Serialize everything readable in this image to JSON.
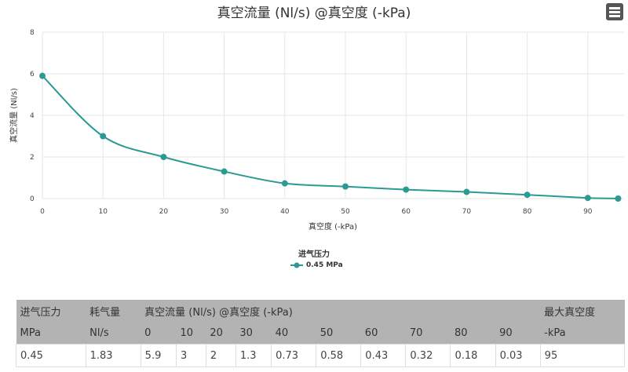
{
  "chart_data": {
    "type": "line",
    "title": "真空流量 (Nl/s) @真空度 (-kPa)",
    "xlabel": "真空度 (-kPa)",
    "ylabel": "真空流量 (Nl/s)",
    "xlim": [
      0,
      95
    ],
    "ylim": [
      0,
      8
    ],
    "xticks": [
      "0",
      "10",
      "20",
      "30",
      "40",
      "50",
      "60",
      "70",
      "80",
      "90"
    ],
    "yticks": [
      "0",
      "2",
      "4",
      "6",
      "8"
    ],
    "grid": true,
    "legend_title": "进气压力",
    "legend_position": "bottom",
    "series": [
      {
        "name": "0.45 MPa",
        "color": "#2a9a93",
        "x": [
          0,
          10,
          20,
          30,
          40,
          50,
          60,
          70,
          80,
          90,
          95
        ],
        "y": [
          5.9,
          3,
          2,
          1.3,
          0.73,
          0.58,
          0.43,
          0.32,
          0.18,
          0.03,
          0
        ]
      }
    ]
  },
  "menu_icon": "hamburger-menu-icon",
  "table": {
    "header1": [
      "进气压力",
      "耗气量",
      "真空流量 (Nl/s) @真空度 (-kPa)",
      "最大真空度"
    ],
    "header2": [
      "MPa",
      "Nl/s",
      "0",
      "10",
      "20",
      "30",
      "40",
      "50",
      "60",
      "70",
      "80",
      "90",
      "-kPa"
    ],
    "row": [
      "0.45",
      "1.83",
      "5.9",
      "3",
      "2",
      "1.3",
      "0.73",
      "0.58",
      "0.43",
      "0.32",
      "0.18",
      "0.03",
      "95"
    ]
  }
}
